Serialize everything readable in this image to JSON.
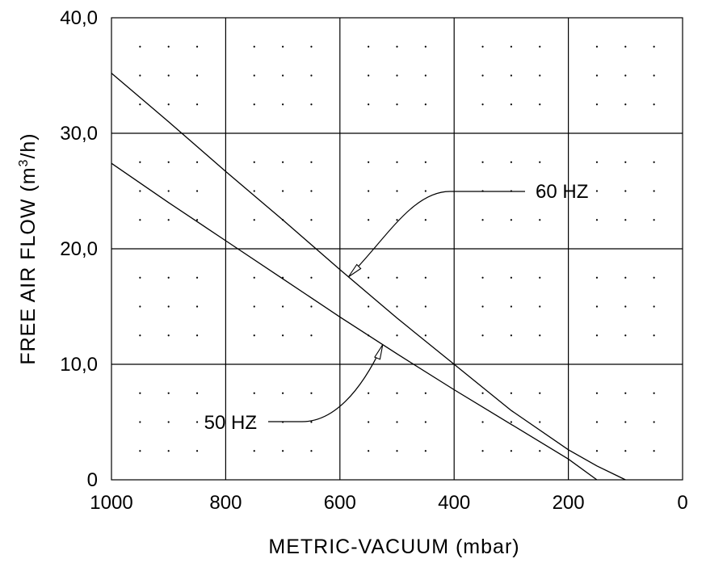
{
  "chart_data": {
    "type": "line",
    "title": "",
    "xlabel": "METRIC-VACUUM (mbar)",
    "ylabel_parts": {
      "pre": "FREE AIR FLOW (m",
      "sup": "3",
      "post": "/h)"
    },
    "xlim": [
      1000,
      0
    ],
    "ylim": [
      0,
      40
    ],
    "x_tick_labels": [
      "1000",
      "800",
      "600",
      "400",
      "200",
      "0"
    ],
    "y_tick_labels": [
      "0",
      "10,0",
      "20,0",
      "30,0",
      "40,0"
    ],
    "grid": true,
    "minor_grid": "dotted",
    "series": [
      {
        "name": "60 HZ",
        "x": [
          1000,
          900,
          800,
          700,
          600,
          500,
          400,
          300,
          200,
          150,
          100
        ],
        "y": [
          35.2,
          31.0,
          26.7,
          22.5,
          18.2,
          14.0,
          10.0,
          6.0,
          2.6,
          1.2,
          0.0
        ]
      },
      {
        "name": "50 HZ",
        "x": [
          1000,
          900,
          800,
          700,
          600,
          500,
          400,
          300,
          200,
          150
        ],
        "y": [
          27.4,
          24.0,
          20.7,
          17.4,
          14.1,
          10.9,
          7.8,
          4.8,
          1.8,
          0.0
        ]
      }
    ],
    "annotations": [
      {
        "text": "60 HZ",
        "series": "60 HZ",
        "arrow_at_x": 585
      },
      {
        "text": "50 HZ",
        "series": "50 HZ",
        "arrow_at_x": 525
      }
    ]
  }
}
